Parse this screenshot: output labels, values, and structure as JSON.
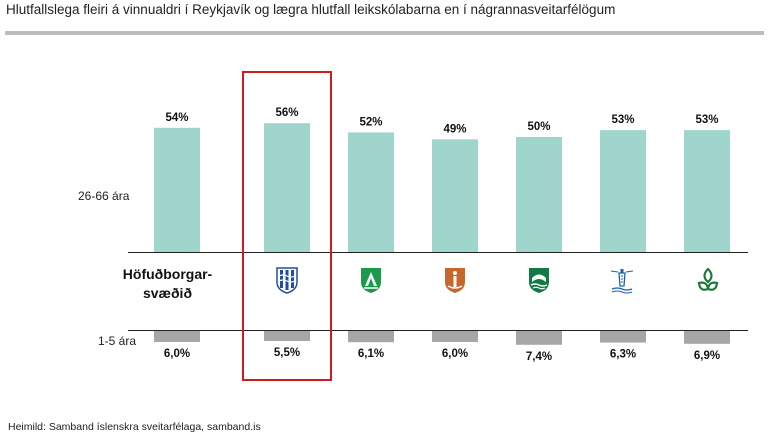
{
  "title": "Hlutfallslega fleiri á vinnualdri í Reykjavík og lægra hlutfall leikskólabarna en í nágrannasveitarfélögum",
  "source": "Heimild: Samband íslenskra sveitarfélaga, samband.is",
  "group_label": "Höfuðborgar-\nsvæðið",
  "colors": {
    "top_bar": "#a0d5cd",
    "bottom_bar": "#a6a6a6",
    "highlight": "#d31a1a"
  },
  "chart_data": {
    "type": "bar",
    "row_labels": [
      "26-66 ára",
      "1-5 ára"
    ],
    "categories": [
      "Höfuðborgarsvæðið",
      "Reykjavík",
      "Mosfellsbær",
      "Hafnarfjörður",
      "Kópavogur",
      "Seltjarnarnes",
      "Garðabær"
    ],
    "category_icons": [
      "",
      "reykjavik-crest-icon",
      "mosfellsbaer-crest-icon",
      "hafnarfjordur-crest-icon",
      "kopavogur-crest-icon",
      "seltjarnarnes-crest-icon",
      "gardabaer-crest-icon"
    ],
    "series": [
      {
        "name": "26-66 ára",
        "values": [
          54,
          56,
          52,
          49,
          50,
          53,
          53
        ],
        "labels": [
          "54%",
          "56%",
          "52%",
          "49%",
          "50%",
          "53%",
          "53%"
        ],
        "direction": "up"
      },
      {
        "name": "1-5 ára",
        "values": [
          6.0,
          5.5,
          6.1,
          6.0,
          7.4,
          6.3,
          6.9
        ],
        "labels": [
          "6,0%",
          "5,5%",
          "6,1%",
          "6,0%",
          "7,4%",
          "6,3%",
          "6,9%"
        ],
        "direction": "down"
      }
    ],
    "highlighted_category": "Reykjavík",
    "grid": false,
    "legend": "none"
  }
}
